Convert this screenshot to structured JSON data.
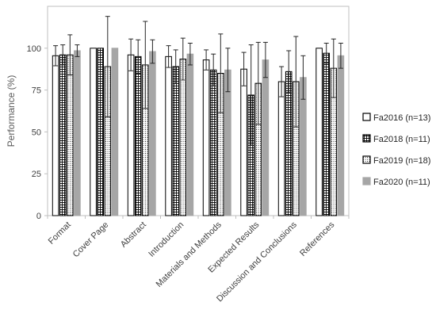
{
  "chart_data": {
    "type": "bar",
    "title": "",
    "xlabel": "",
    "ylabel": "Performance (%)",
    "ylim": [
      0,
      125
    ],
    "yticks": [
      0,
      25,
      50,
      75,
      100
    ],
    "grid": false,
    "legend_position": "right",
    "categories": [
      "Format",
      "Cover Page",
      "Abstract",
      "Introduction",
      "Materials and Methods",
      "Expected Results",
      "Discussion and Conclusions",
      "References"
    ],
    "series": [
      {
        "name": "Fa2016 (n=13)",
        "pattern": "white",
        "values": [
          95.5,
          100,
          96,
          95,
          93,
          87.5,
          80,
          100
        ],
        "errors": [
          6,
          0,
          9.5,
          6.5,
          6,
          10,
          9,
          0
        ]
      },
      {
        "name": "Fa2018 (n=11)",
        "pattern": "grid",
        "values": [
          96,
          100,
          95,
          89,
          87,
          72,
          86,
          97
        ],
        "errors": [
          6,
          0,
          10,
          10,
          9.5,
          30,
          12.5,
          6
        ]
      },
      {
        "name": "Fa2019 (n=18)",
        "pattern": "dots",
        "values": [
          96,
          89,
          90,
          93.5,
          85,
          79,
          80,
          88
        ],
        "errors": [
          12,
          30,
          26,
          12.5,
          23.5,
          24.5,
          27,
          17.5
        ]
      },
      {
        "name": "Fa2020 (n=11)",
        "pattern": "gray",
        "values": [
          98.5,
          100,
          98,
          96.5,
          87,
          93,
          82.5,
          95.5
        ],
        "errors": [
          3.5,
          0,
          7,
          6.5,
          13,
          10.5,
          13,
          7.5
        ]
      }
    ],
    "colors": {
      "border": "#000000",
      "gray_fill": "#a6a6a6",
      "axis": "#bfbfbf",
      "text": "#404040"
    }
  }
}
